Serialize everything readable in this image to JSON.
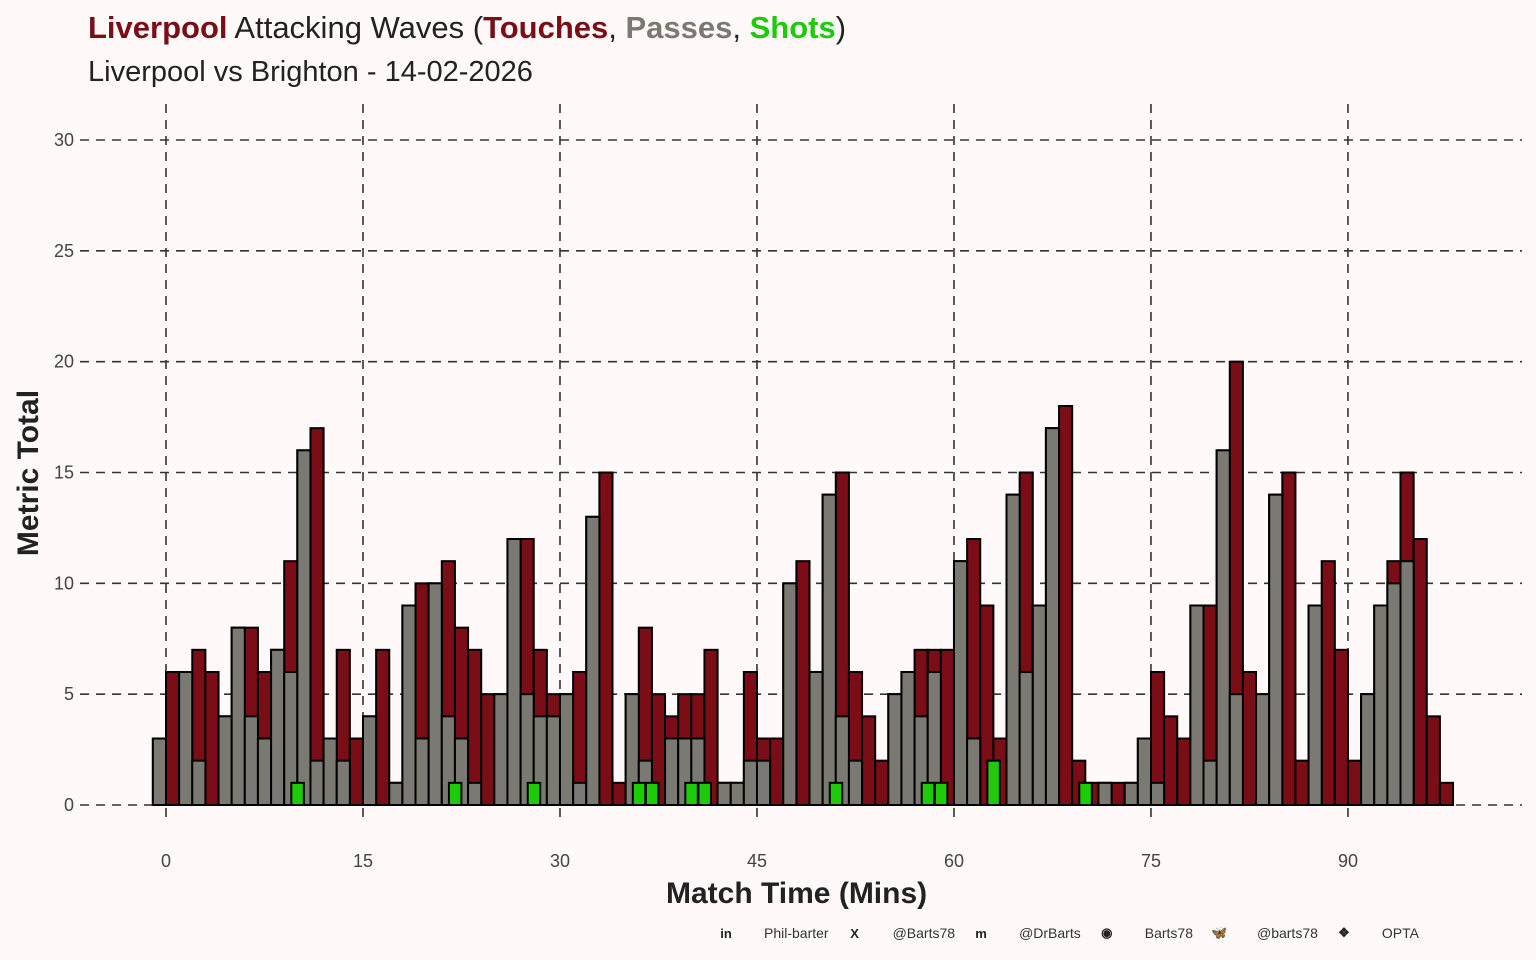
{
  "title": {
    "team": "Liverpool",
    "middle": " Attacking Waves (",
    "touches": "Touches",
    "sep1": ", ",
    "passes": "Passes",
    "sep2": ", ",
    "shots": "Shots",
    "end": ")"
  },
  "subtitle": "Liverpool vs Brighton - 14-02-2026",
  "colors": {
    "touches": "#7B0D16",
    "passes": "#7A7A72",
    "shots": "#1DCB0B",
    "team": "#7B0D16"
  },
  "footer": [
    {
      "icon": "linkedin-icon",
      "glyph": "in",
      "label": "Phil-barter"
    },
    {
      "icon": "x-icon",
      "glyph": "X",
      "label": "@Barts78"
    },
    {
      "icon": "mastodon-icon",
      "glyph": "m",
      "label": "@DrBarts"
    },
    {
      "icon": "github-icon",
      "glyph": "◉",
      "label": "Barts78"
    },
    {
      "icon": "bluesky-icon",
      "glyph": "🦋",
      "label": "@barts78"
    },
    {
      "icon": "dropbox-icon",
      "glyph": "❖",
      "label": "OPTA"
    }
  ],
  "chart_data": {
    "type": "bar",
    "title": "Liverpool Attacking Waves (Touches, Passes, Shots)",
    "subtitle": "Liverpool vs Brighton - 14-02-2026",
    "xlabel": "Match Time (Mins)",
    "ylabel": "Metric Total",
    "xlim": [
      -3,
      103
    ],
    "ylim": [
      0,
      30
    ],
    "xticks": [
      0,
      15,
      30,
      45,
      60,
      75,
      90
    ],
    "yticks": [
      0,
      5,
      10,
      15,
      20,
      25,
      30
    ],
    "grid": true,
    "minutes": [
      0,
      1,
      2,
      3,
      4,
      5,
      6,
      7,
      8,
      9,
      10,
      11,
      12,
      13,
      14,
      15,
      16,
      17,
      18,
      19,
      20,
      21,
      22,
      23,
      24,
      25,
      26,
      27,
      28,
      29,
      30,
      31,
      32,
      33,
      34,
      35,
      36,
      37,
      38,
      39,
      40,
      41,
      42,
      43,
      44,
      45,
      46,
      47,
      48,
      49,
      50,
      51,
      52,
      53,
      54,
      55,
      56,
      57,
      58,
      59,
      60,
      61,
      62,
      63,
      64,
      65,
      66,
      67,
      68,
      69,
      70,
      71,
      72,
      73,
      74,
      75,
      76,
      77,
      78,
      79,
      80,
      81,
      82,
      83,
      84,
      85,
      86,
      87,
      88,
      89,
      90,
      91,
      92,
      93,
      94,
      95,
      96,
      97,
      98
    ],
    "series": [
      {
        "name": "Touches",
        "values": [
          3,
          6,
          6,
          7,
          6,
          4,
          8,
          8,
          6,
          7,
          11,
          16,
          17,
          3,
          7,
          3,
          4,
          7,
          1,
          9,
          10,
          10,
          11,
          8,
          7,
          5,
          5,
          12,
          12,
          7,
          5,
          5,
          6,
          13,
          15,
          1,
          5,
          8,
          5,
          4,
          5,
          5,
          7,
          1,
          1,
          6,
          3,
          3,
          10,
          11,
          6,
          14,
          15,
          6,
          4,
          2,
          5,
          6,
          7,
          7,
          7,
          11,
          12,
          9,
          3,
          14,
          15,
          9,
          17,
          18,
          2,
          1,
          1,
          1,
          1,
          3,
          6,
          4,
          3,
          9,
          9,
          16,
          20,
          6,
          5,
          14,
          15,
          2,
          9,
          11,
          7,
          2,
          5,
          9,
          11,
          15,
          12,
          4,
          1
        ]
      },
      {
        "name": "Passes",
        "values": [
          3,
          0,
          6,
          2,
          0,
          4,
          8,
          4,
          3,
          7,
          6,
          16,
          2,
          3,
          2,
          0,
          4,
          0,
          1,
          9,
          3,
          10,
          4,
          3,
          1,
          0,
          5,
          12,
          5,
          4,
          4,
          5,
          1,
          13,
          0,
          0,
          5,
          2,
          0,
          3,
          3,
          3,
          0,
          1,
          1,
          2,
          2,
          0,
          10,
          0,
          6,
          14,
          4,
          2,
          0,
          0,
          5,
          6,
          4,
          6,
          0,
          11,
          3,
          0,
          0,
          14,
          6,
          9,
          17,
          0,
          0,
          0,
          1,
          0,
          1,
          3,
          1,
          0,
          0,
          9,
          2,
          16,
          5,
          0,
          5,
          14,
          0,
          0,
          9,
          0,
          0,
          0,
          5,
          9,
          10,
          11,
          0,
          0,
          0
        ]
      },
      {
        "name": "Shots",
        "points": [
          [
            10,
            1
          ],
          [
            22,
            1
          ],
          [
            28,
            1
          ],
          [
            36,
            1
          ],
          [
            37,
            1
          ],
          [
            40,
            1
          ],
          [
            41,
            1
          ],
          [
            51,
            1
          ],
          [
            58,
            1
          ],
          [
            59,
            1
          ],
          [
            63,
            2
          ],
          [
            70,
            1
          ]
        ]
      }
    ]
  }
}
